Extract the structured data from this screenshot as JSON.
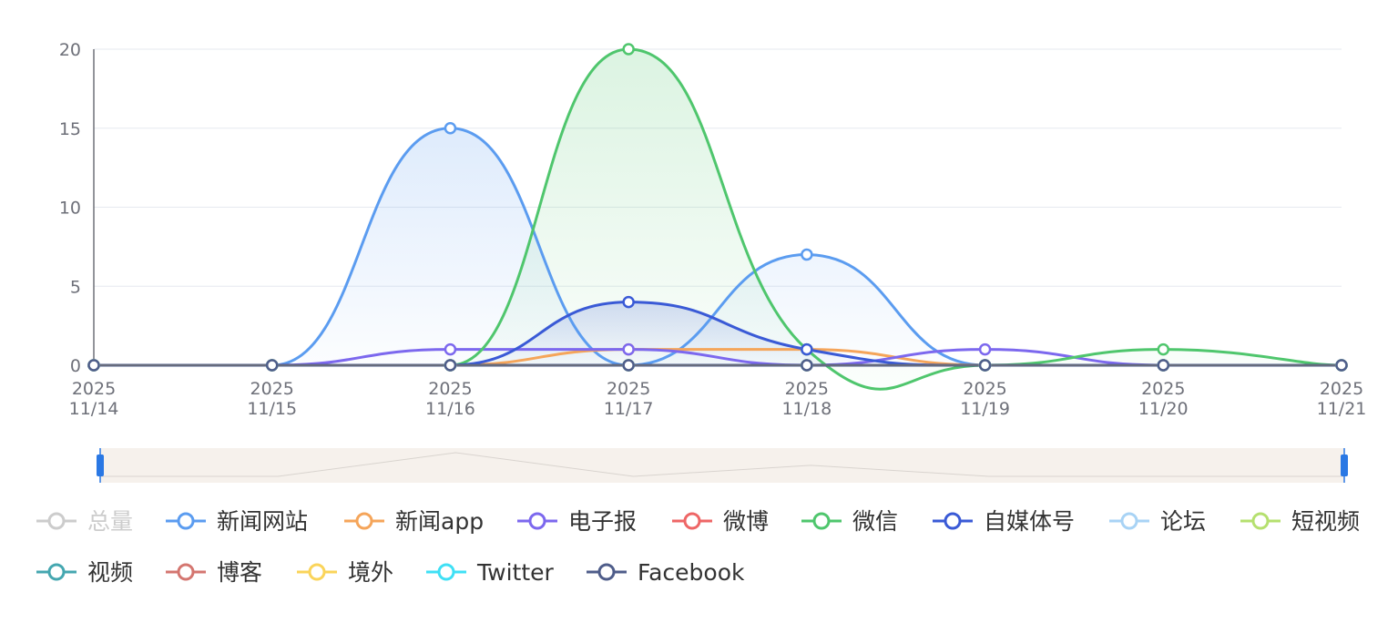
{
  "chart_data": {
    "type": "line",
    "smooth": true,
    "title": "",
    "xlabel": "",
    "ylabel": "",
    "ylim": [
      0,
      20
    ],
    "yticks": [
      0,
      5,
      10,
      15,
      20
    ],
    "categories": [
      [
        "2025",
        "11/14"
      ],
      [
        "2025",
        "11/15"
      ],
      [
        "2025",
        "11/16"
      ],
      [
        "2025",
        "11/17"
      ],
      [
        "2025",
        "11/18"
      ],
      [
        "2025",
        "11/19"
      ],
      [
        "2025",
        "11/20"
      ],
      [
        "2025",
        "11/21"
      ]
    ],
    "grid": true,
    "legend_position": "bottom",
    "series": [
      {
        "name": "总量",
        "color": "#c8c8c8",
        "visible": false,
        "values": [
          0,
          0,
          0,
          0,
          0,
          0,
          0,
          0
        ]
      },
      {
        "name": "新闻网站",
        "color": "#5b9cf0",
        "visible": true,
        "area": true,
        "values": [
          0,
          0,
          15,
          0,
          7,
          0,
          0,
          0
        ]
      },
      {
        "name": "新闻app",
        "color": "#f5a55a",
        "visible": true,
        "values": [
          0,
          0,
          0,
          1,
          1,
          0,
          0,
          0
        ]
      },
      {
        "name": "电子报",
        "color": "#7c68ee",
        "visible": true,
        "values": [
          0,
          0,
          1,
          1,
          0,
          1,
          0,
          0
        ]
      },
      {
        "name": "微博",
        "color": "#ee6666",
        "visible": true,
        "values": [
          0,
          0,
          0,
          0,
          0,
          0,
          0,
          0
        ]
      },
      {
        "name": "微信",
        "color": "#4fc66d",
        "visible": true,
        "area": true,
        "values": [
          0,
          0,
          0,
          20,
          1,
          0,
          1,
          0
        ]
      },
      {
        "name": "自媒体号",
        "color": "#3a5ad6",
        "visible": true,
        "area": true,
        "values": [
          0,
          0,
          0,
          4,
          1,
          0,
          0,
          0
        ]
      },
      {
        "name": "论坛",
        "color": "#a8d3f5",
        "visible": true,
        "values": [
          0,
          0,
          0,
          0,
          0,
          0,
          0,
          0
        ]
      },
      {
        "name": "短视频",
        "color": "#b5e06f",
        "visible": true,
        "values": [
          0,
          0,
          0,
          0,
          0,
          0,
          0,
          0
        ]
      },
      {
        "name": "视频",
        "color": "#45a7b0",
        "visible": true,
        "values": [
          0,
          0,
          0,
          0,
          0,
          0,
          0,
          0
        ]
      },
      {
        "name": "博客",
        "color": "#d47670",
        "visible": true,
        "values": [
          0,
          0,
          0,
          0,
          0,
          0,
          0,
          0
        ]
      },
      {
        "name": "境外",
        "color": "#fad45a",
        "visible": true,
        "values": [
          0,
          0,
          0,
          0,
          0,
          0,
          0,
          0
        ]
      },
      {
        "name": "Twitter",
        "color": "#3fe0f5",
        "visible": true,
        "values": [
          0,
          0,
          0,
          0,
          0,
          0,
          0,
          0
        ]
      },
      {
        "name": "Facebook",
        "color": "#4f5d8a",
        "visible": true,
        "values": [
          0,
          0,
          0,
          0,
          0,
          0,
          0,
          0
        ]
      }
    ],
    "datazoom": {
      "range_percent": [
        0,
        100
      ],
      "handle_color": "#2a78e4",
      "background_color": "#f6f1ec",
      "preview_values": [
        0,
        0,
        15,
        0,
        7,
        0,
        0,
        0
      ]
    }
  }
}
